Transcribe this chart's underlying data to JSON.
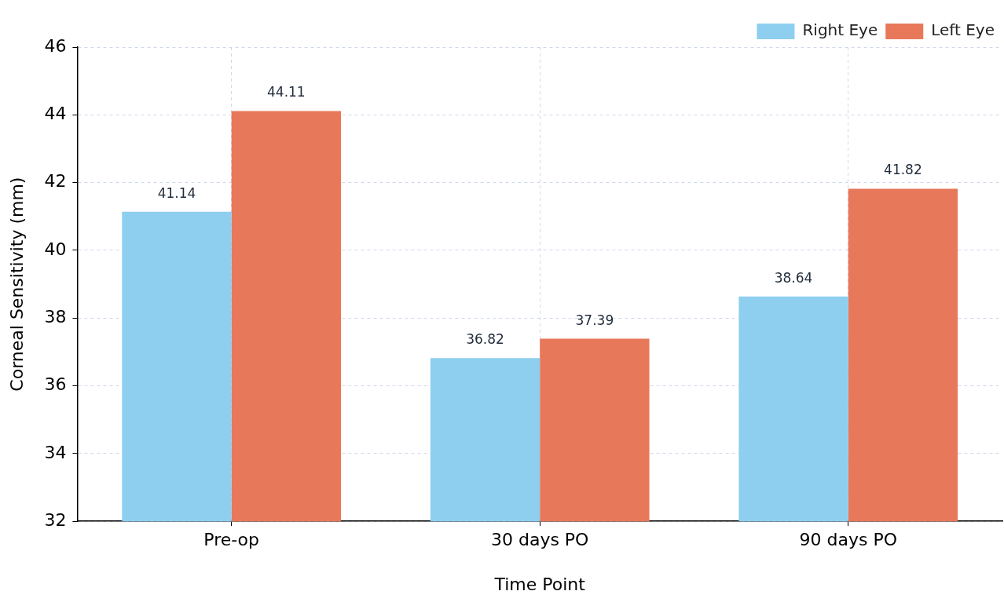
{
  "chart_data": {
    "type": "bar",
    "xlabel": "Time Point",
    "ylabel": "Corneal Sensitivity (mm)",
    "categories": [
      "Pre-op",
      "30 days PO",
      "90 days PO"
    ],
    "series": [
      {
        "name": "Right Eye",
        "color": "#8ecff0",
        "values": [
          41.14,
          36.82,
          38.64
        ]
      },
      {
        "name": "Left Eye",
        "color": "#e8785a",
        "values": [
          44.11,
          37.39,
          41.82
        ]
      }
    ],
    "ylim": [
      32,
      46
    ],
    "yticks": [
      32,
      34,
      36,
      38,
      40,
      42,
      44,
      46
    ],
    "grid": true,
    "legend": "top right",
    "data_labels": true
  }
}
